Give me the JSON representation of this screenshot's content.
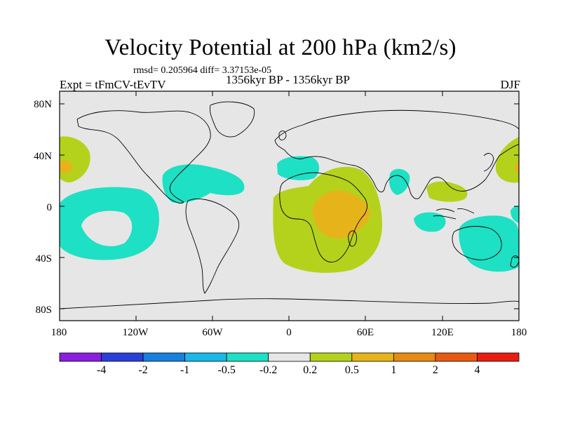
{
  "title": "Velocity Potential at 200 hPa (km2/s)",
  "stats": "rmsd= 0.205964 diff= 3.37153e-05",
  "experiment": "Expt = tFmCV-tEvTV",
  "period": "1356kyr BP - 1356kyr BP",
  "season": "DJF",
  "latitude_labels": [
    "80N",
    "40N",
    "0",
    "40S",
    "80S"
  ],
  "longitude_labels": [
    "180",
    "120W",
    "60W",
    "0",
    "60E",
    "120E",
    "180"
  ],
  "colorbar": {
    "labels": [
      "-4",
      "-2",
      "-1",
      "-0.5",
      "-0.2",
      "0.2",
      "0.5",
      "1",
      "2",
      "4"
    ],
    "colors": [
      "#8a1ee0",
      "#2a3fd8",
      "#1580e0",
      "#18b8e8",
      "#1ee0c4",
      "#e6e6e6",
      "#b4d21c",
      "#e6b41a",
      "#e68a14",
      "#e85a12",
      "#ea1c12"
    ]
  },
  "map_colors": {
    "ocean": "#e6e6e6",
    "neg_weak": "#1ee0c4",
    "pos_weak": "#b4d21c",
    "pos_mid": "#e6b41a"
  }
}
